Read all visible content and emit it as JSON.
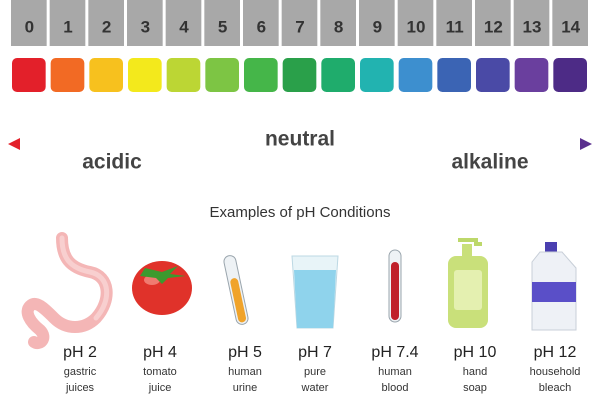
{
  "scale": [
    {
      "value": 0,
      "color": "#e3202a"
    },
    {
      "value": 1,
      "color": "#f26a24"
    },
    {
      "value": 2,
      "color": "#f7c11e"
    },
    {
      "value": 3,
      "color": "#f3e91c"
    },
    {
      "value": 4,
      "color": "#bcd634"
    },
    {
      "value": 5,
      "color": "#7dc544"
    },
    {
      "value": 6,
      "color": "#45b649"
    },
    {
      "value": 7,
      "color": "#2aa04a"
    },
    {
      "value": 8,
      "color": "#1fac6c"
    },
    {
      "value": 9,
      "color": "#22b3b0"
    },
    {
      "value": 10,
      "color": "#3d8fcf"
    },
    {
      "value": 11,
      "color": "#3b64b4"
    },
    {
      "value": 12,
      "color": "#4a4aa6"
    },
    {
      "value": 13,
      "color": "#6a3f9e"
    },
    {
      "value": 14,
      "color": "#4d2b86"
    }
  ],
  "neutral": "neutral",
  "acidic": "acidic",
  "alkaline": "alkaline",
  "examples_title": "Examples of pH Conditions",
  "examples": [
    {
      "ph": "pH 2",
      "label": [
        "gastric",
        "juices"
      ]
    },
    {
      "ph": "pH 4",
      "label": [
        "tomato",
        "juice"
      ]
    },
    {
      "ph": "pH 5",
      "label": [
        "human",
        "urine"
      ]
    },
    {
      "ph": "pH 7",
      "label": [
        "pure",
        "water"
      ]
    },
    {
      "ph": "pH 7.4",
      "label": [
        "human",
        "blood"
      ]
    },
    {
      "ph": "pH 10",
      "label": [
        "hand",
        "soap"
      ]
    },
    {
      "ph": "pH 12",
      "label": [
        "household",
        "bleach"
      ]
    }
  ]
}
